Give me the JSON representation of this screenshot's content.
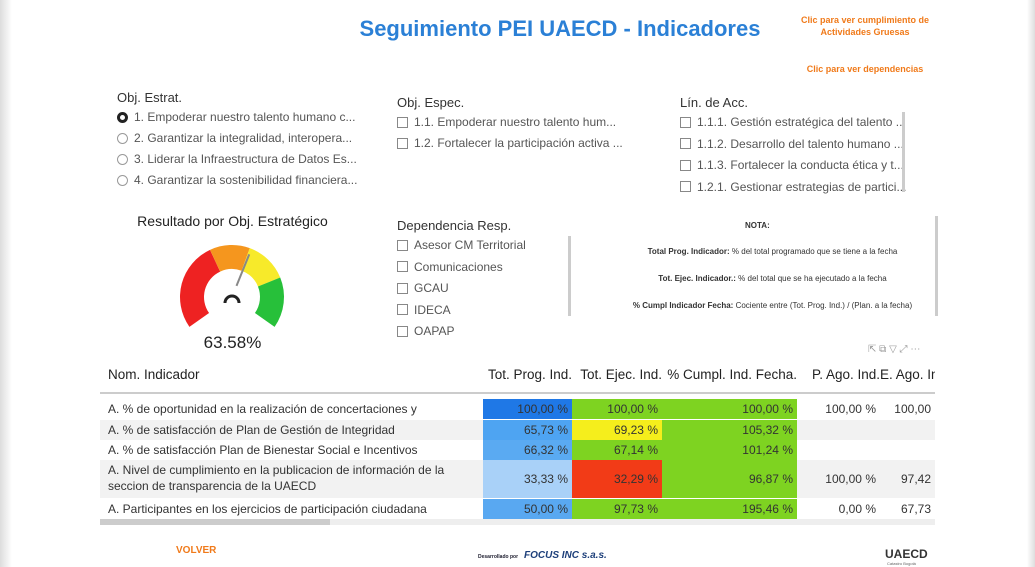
{
  "header": {
    "title": "Seguimiento PEI UAECD - Indicadores",
    "link_activities": [
      "Clic para ver cumplimiento de",
      "Actividades Gruesas"
    ],
    "link_dependencies": "Clic para ver dependencias"
  },
  "slicers": [
    {
      "title": "Obj. Estrat.",
      "kind": "radio",
      "selected": 0,
      "items": [
        "1. Empoderar nuestro talento humano c...",
        "2. Garantizar la integralidad, interopera...",
        "3. Liderar la Infraestructura de Datos Es...",
        "4. Garantizar la sostenibilidad financiera..."
      ]
    },
    {
      "title": "Obj. Espec.",
      "kind": "checkbox",
      "items": [
        "1.1. Empoderar nuestro talento hum...",
        "1.2. Fortalecer la participación activa ..."
      ]
    },
    {
      "title": "Lín. de Acc.",
      "kind": "checkbox",
      "items": [
        "1.1.1. Gestión estratégica del talento ...",
        "1.1.2. Desarrollo del talento humano ...",
        "1.1.3. Fortalecer la conducta ética y t...",
        "1.2.1. Gestionar estrategias de partici..."
      ]
    },
    {
      "title": "Dependencia Resp.",
      "kind": "checkbox",
      "items": [
        "Asesor CM Territorial",
        "Comunicaciones",
        "GCAU",
        "IDECA",
        "OAPAP"
      ]
    }
  ],
  "gauge": {
    "title": "Resultado por Obj. Estratégico",
    "value_label": "63.58%"
  },
  "note": {
    "title": "NOTA:",
    "lines": [
      {
        "term": "Total Prog. Indicador:",
        "text": "% del total programado que se tiene a la fecha"
      },
      {
        "term": "Tot. Ejec. Indicador.:",
        "text": "% del total que se ha ejecutado a la fecha"
      },
      {
        "term": "% Cumpl Indicador Fecha:",
        "text": "Cociente entre (Tot. Prog. Ind.) / (Plan. a la fecha)"
      }
    ]
  },
  "table": {
    "columns": [
      "Nom. Indicador",
      "Tot. Prog. Ind.",
      "Tot. Ejec. Ind.",
      "% Cumpl. Ind. Fecha.",
      "P. Ago. Ind.",
      "E. Ago. Ind."
    ],
    "rows": [
      [
        "A. % de oportunidad en la realización de concertaciones y evaluaciones",
        "100,00 %",
        "100,00 %",
        "100,00 %",
        "100,00 %",
        "100,00"
      ],
      [
        "A. % de satisfacción de Plan de Gestión de Integridad",
        "65,73 %",
        "69,23 %",
        "105,32 %",
        null,
        null
      ],
      [
        "A. % de satisfacción Plan de Bienestar Social e Incentivos",
        "66,32 %",
        "67,14 %",
        "101,24 %",
        null,
        null
      ],
      [
        "A. Nivel de cumplimiento en la publicacion de información de la seccion de transparencia de la UAECD",
        "33,33 %",
        "32,29 %",
        "96,87 %",
        "100,00 %",
        "97,42"
      ],
      [
        "A. Participantes en los ejercicios de participación ciudadana",
        "50,00 %",
        "97,73 %",
        "195,46 %",
        "0,00 %",
        "67,73"
      ]
    ],
    "cell_colors": [
      [
        "#1f78e6",
        "#7ed321",
        "#7ed321"
      ],
      [
        "#4ea4f2",
        "#f5ee1c",
        "#7ed321"
      ],
      [
        "#5aaaf2",
        "#7ed321",
        "#7ed321"
      ],
      [
        "#a9d1f8",
        "#f23b17",
        "#7ed321"
      ],
      [
        "#59a8f1",
        "#7ed321",
        "#7ed321"
      ]
    ]
  },
  "footer": {
    "back": "VOLVER",
    "developer_prefix": "Desarrollado por",
    "developer": "FOCUS INC s.a.s.",
    "brand": "UAECD",
    "brand_sub": "Catastro Bogotá"
  }
}
